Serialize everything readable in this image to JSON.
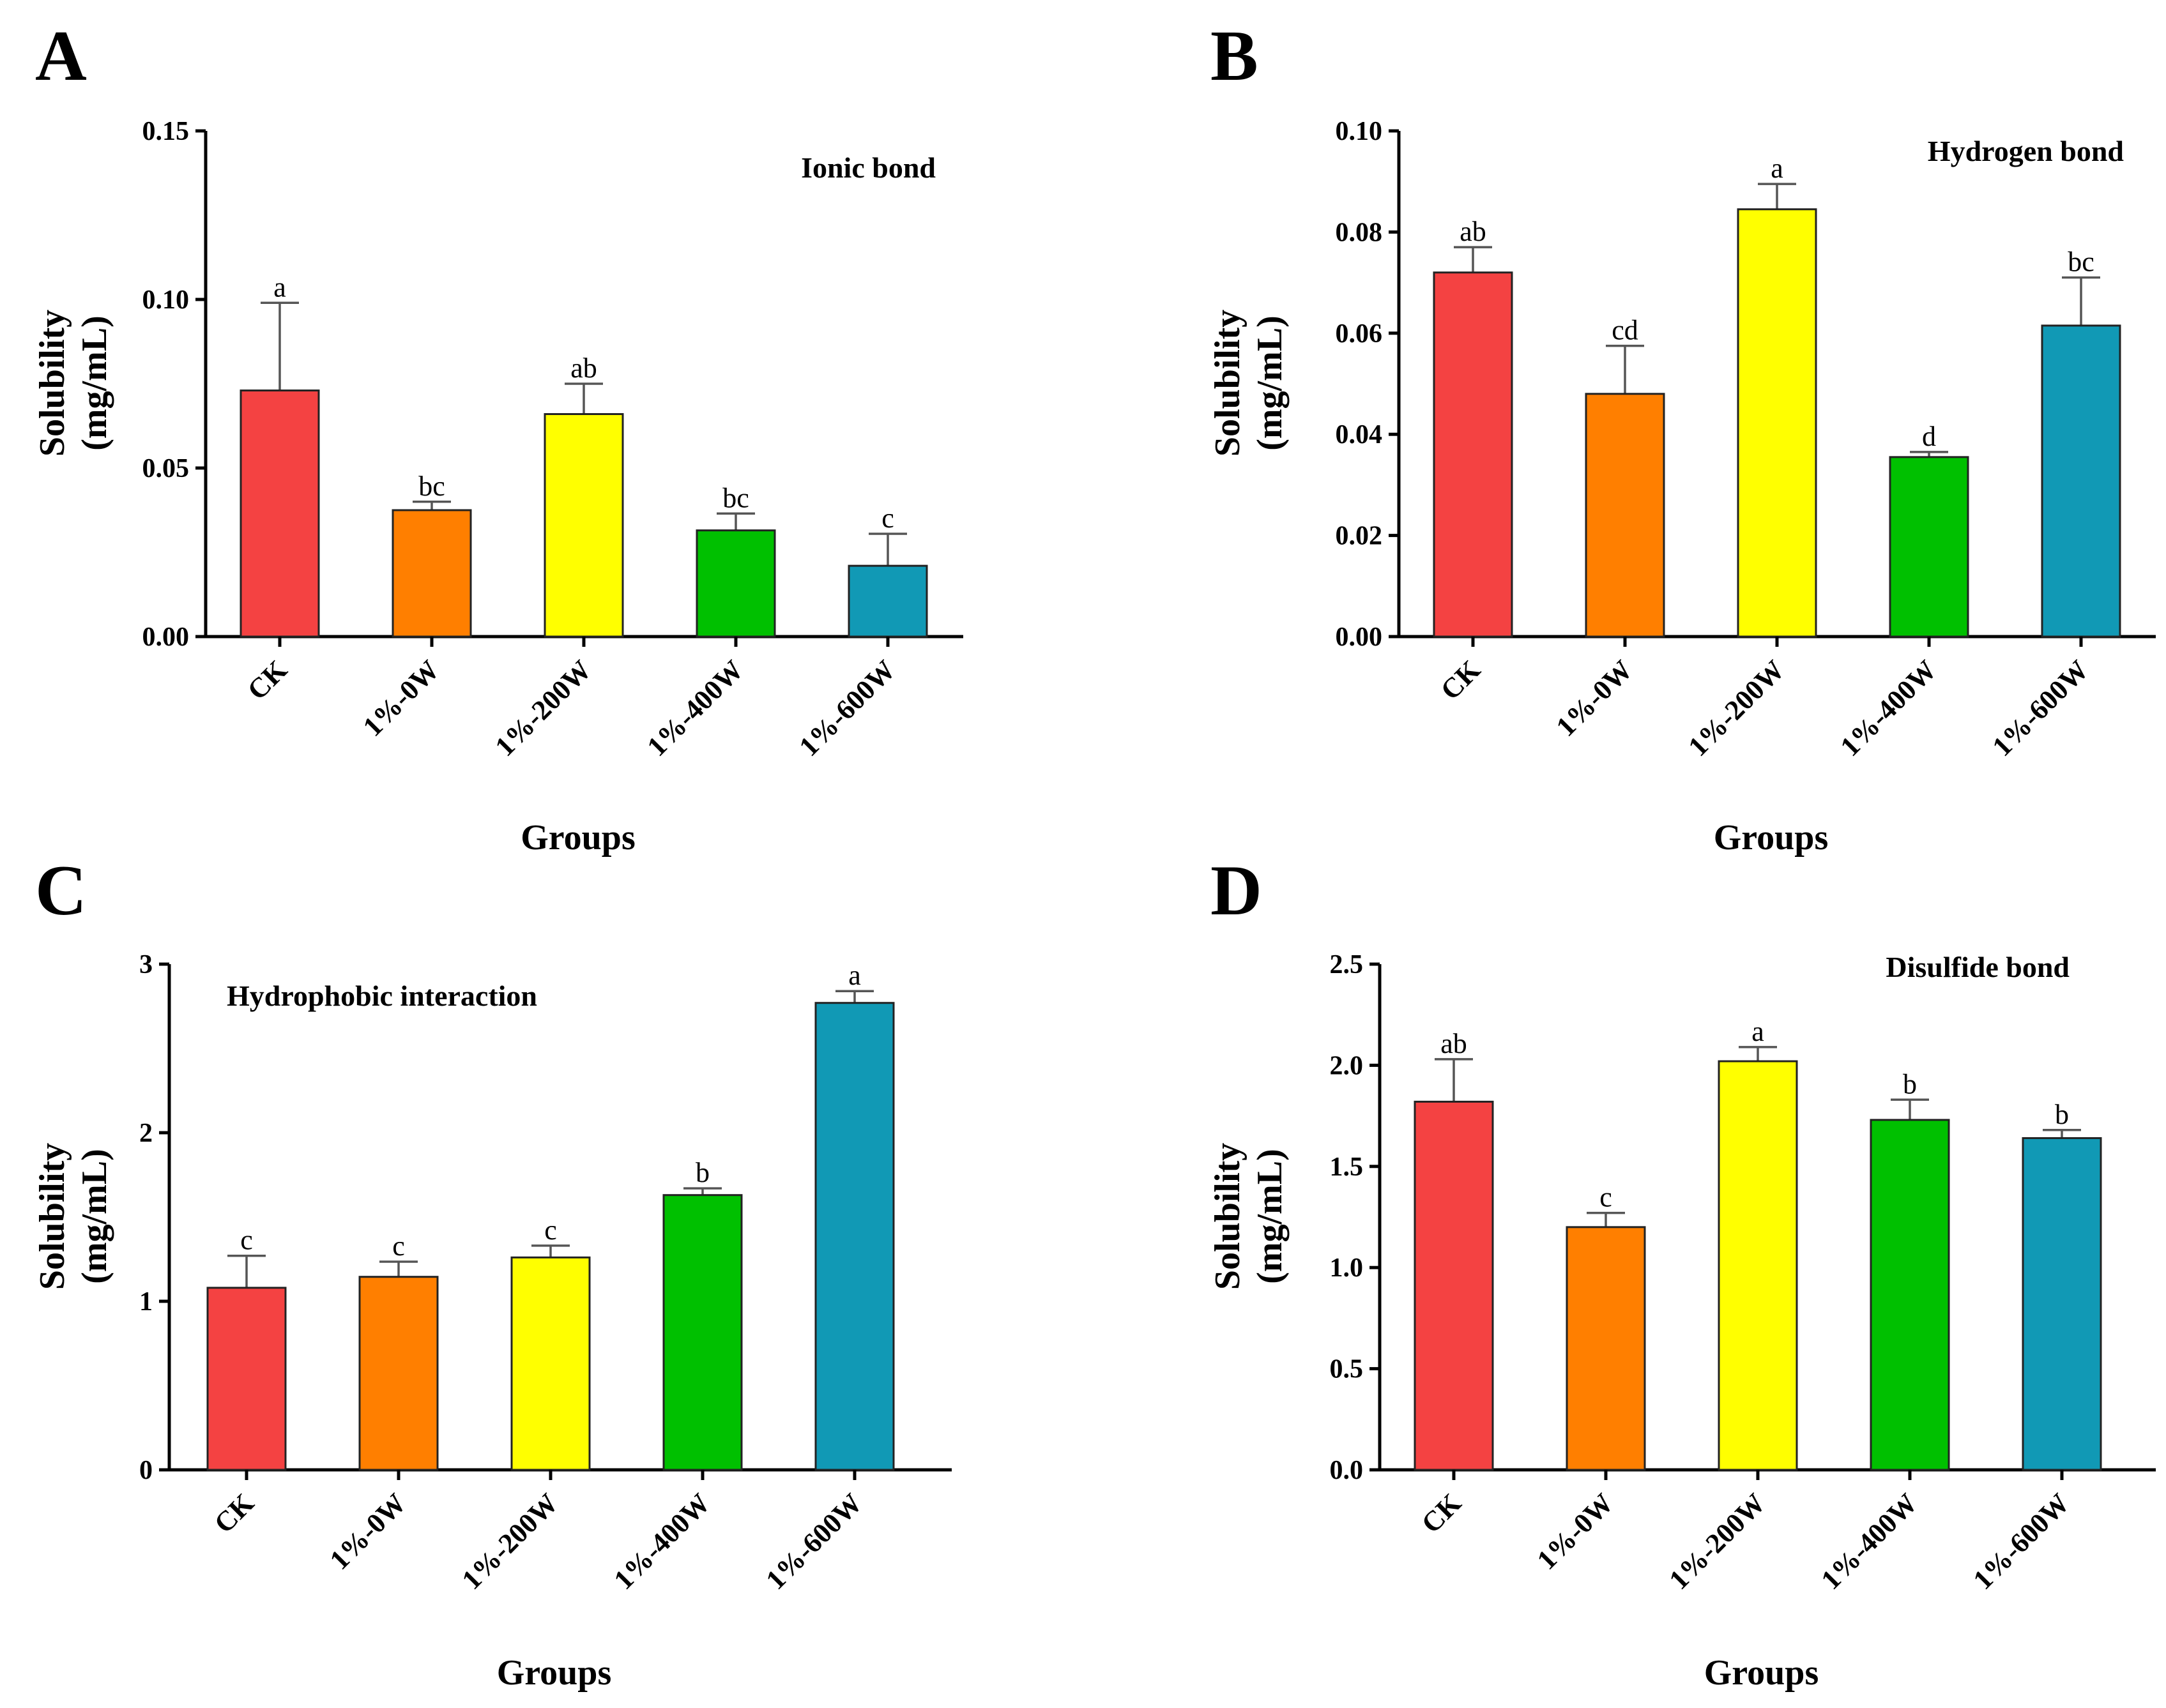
{
  "figure": {
    "colors": [
      "#F44242",
      "#FF7F00",
      "#FFFF00",
      "#00C000",
      "#1199B5"
    ]
  },
  "chart_data": [
    {
      "panel": "A",
      "type": "bar",
      "title": "Ionic bond",
      "xlabel": "Groups",
      "ylabel": [
        "Solubility",
        "(mg/mL)"
      ],
      "categories": [
        "CK",
        "1%-0W",
        "1%-200W",
        "1%-400W",
        "1%-600W"
      ],
      "values": [
        0.073,
        0.0375,
        0.066,
        0.0315,
        0.021
      ],
      "errors": [
        0.026,
        0.0025,
        0.009,
        0.005,
        0.0095
      ],
      "significance": [
        "a",
        "bc",
        "ab",
        "bc",
        "c"
      ],
      "ylim": [
        0,
        0.15
      ],
      "yticks": [
        0,
        0.05,
        0.1,
        0.15
      ],
      "ytick_labels": [
        "0.00",
        "0.05",
        "0.10",
        "0.15"
      ],
      "title_position": "top-right"
    },
    {
      "panel": "B",
      "type": "bar",
      "title": "Hydrogen bond",
      "xlabel": "Groups",
      "ylabel": [
        "Solubility",
        "(mg/mL)"
      ],
      "categories": [
        "CK",
        "1%-0W",
        "1%-200W",
        "1%-400W",
        "1%-600W"
      ],
      "values": [
        0.072,
        0.048,
        0.0845,
        0.0355,
        0.0615
      ],
      "errors": [
        0.005,
        0.0095,
        0.005,
        0.001,
        0.0095
      ],
      "significance": [
        "ab",
        "cd",
        "a",
        "d",
        "bc"
      ],
      "ylim": [
        0,
        0.1
      ],
      "yticks": [
        0,
        0.02,
        0.04,
        0.06,
        0.08,
        0.1
      ],
      "ytick_labels": [
        "0.00",
        "0.02",
        "0.04",
        "0.06",
        "0.08",
        "0.10"
      ],
      "title_position": "top-right"
    },
    {
      "panel": "C",
      "type": "bar",
      "title": "Hydrophobic interaction",
      "xlabel": "Groups",
      "ylabel": [
        "Solubility",
        "(mg/mL)"
      ],
      "categories": [
        "CK",
        "1%-0W",
        "1%-200W",
        "1%-400W",
        "1%-600W"
      ],
      "values": [
        1.08,
        1.145,
        1.26,
        1.63,
        2.77
      ],
      "errors": [
        0.19,
        0.09,
        0.07,
        0.04,
        0.07
      ],
      "significance": [
        "c",
        "c",
        "c",
        "b",
        "a"
      ],
      "ylim": [
        0,
        3
      ],
      "yticks": [
        0,
        1,
        2,
        3
      ],
      "ytick_labels": [
        "0",
        "1",
        "2",
        "3"
      ],
      "title_position": "top-left"
    },
    {
      "panel": "D",
      "type": "bar",
      "title": "Disulfide bond",
      "xlabel": "Groups",
      "ylabel": [
        "Solubility",
        "(mg/mL)"
      ],
      "categories": [
        "CK",
        "1%-0W",
        "1%-200W",
        "1%-400W",
        "1%-600W"
      ],
      "values": [
        1.82,
        1.2,
        2.02,
        1.73,
        1.64
      ],
      "errors": [
        0.21,
        0.07,
        0.07,
        0.1,
        0.04
      ],
      "significance": [
        "ab",
        "c",
        "a",
        "b",
        "b"
      ],
      "ylim": [
        0,
        2.5
      ],
      "yticks": [
        0,
        0.5,
        1,
        1.5,
        2,
        2.5
      ],
      "ytick_labels": [
        "0.0",
        "0.5",
        "1.0",
        "1.5",
        "2.0",
        "2.5"
      ],
      "title_position": "top-right"
    }
  ]
}
